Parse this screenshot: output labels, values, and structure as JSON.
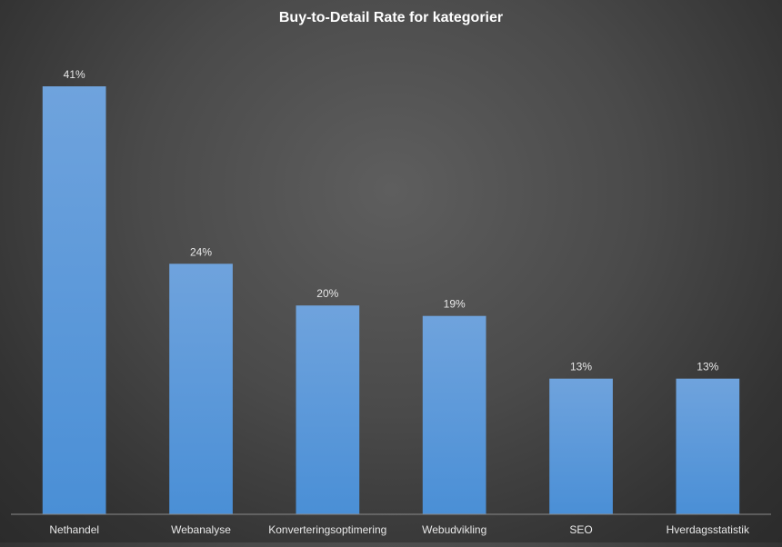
{
  "chart_data": {
    "type": "bar",
    "title": "Buy-to-Detail Rate for kategorier",
    "xlabel": "",
    "ylabel": "",
    "categories": [
      "Nethandel",
      "Webanalyse",
      "Konverteringsoptimering",
      "Webudvikling",
      "SEO",
      "Hverdagsstatistik"
    ],
    "values": [
      41,
      24,
      20,
      19,
      13,
      13
    ],
    "data_labels": [
      "41%",
      "24%",
      "20%",
      "19%",
      "13%",
      "13%"
    ],
    "value_unit": "%",
    "ylim": [
      0,
      41
    ],
    "grid": false,
    "legend": "none",
    "colors": {
      "bar_top": "#6fa3dd",
      "bar_bottom": "#4a8fd6",
      "text": "#e8e8e8",
      "title": "#ffffff",
      "axis": "#8a8a8a"
    }
  }
}
